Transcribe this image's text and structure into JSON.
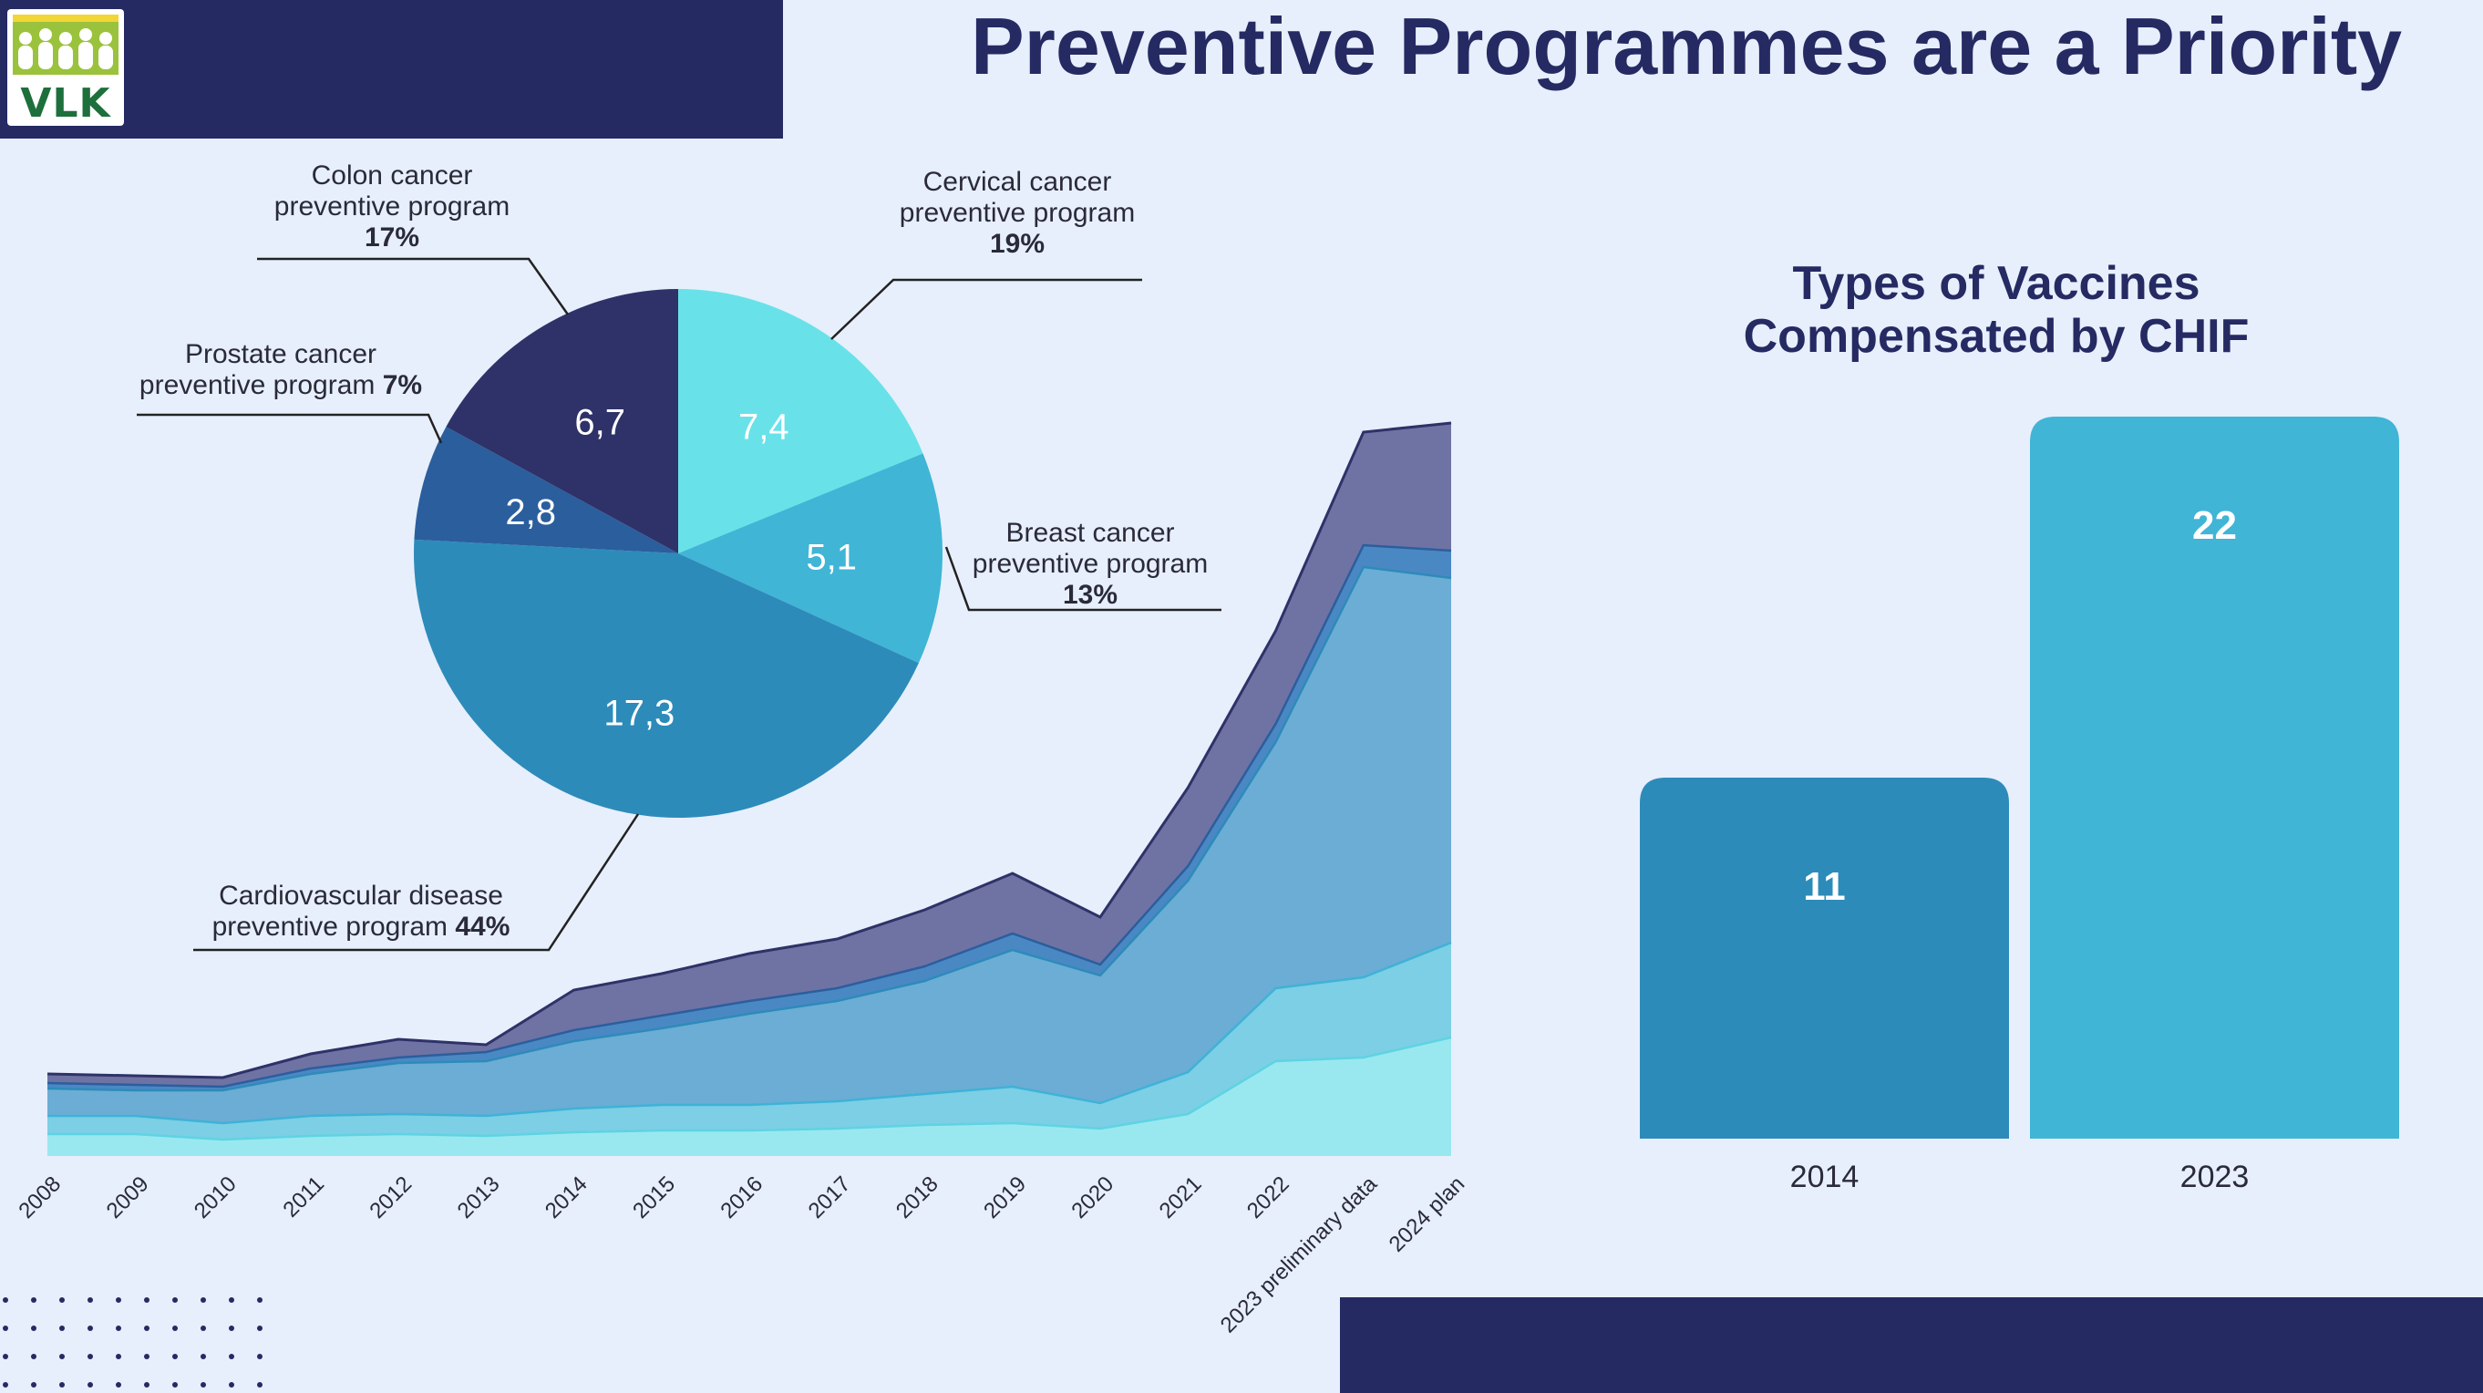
{
  "title": "Preventive Programmes are a Priority",
  "logo": {
    "text": "VLK"
  },
  "colors": {
    "navy": "#252a63",
    "background": "#e7effc",
    "pie_colon": "#2e3268",
    "pie_cervical": "#68e2e8",
    "pie_breast": "#40b5d6",
    "pie_cardio": "#2d8bba",
    "pie_prostate": "#2b5e9d",
    "bar_2014": "#2d8bba",
    "bar_2023": "#40b5d6"
  },
  "chart_data": [
    {
      "type": "area",
      "stacked": true,
      "categories": [
        "2008",
        "2009",
        "2010",
        "2011",
        "2012",
        "2013",
        "2014",
        "2015",
        "2016",
        "2017",
        "2018",
        "2019",
        "2020",
        "2021",
        "2022",
        "2023 preliminary data",
        "2024 plan"
      ],
      "series": [
        {
          "values": [
            24,
            24,
            18,
            22,
            24,
            22,
            26,
            28,
            28,
            30,
            34,
            36,
            30,
            46,
            104,
            108,
            130
          ]
        },
        {
          "values": [
            20,
            20,
            18,
            22,
            22,
            22,
            26,
            28,
            28,
            30,
            34,
            40,
            28,
            46,
            80,
            88,
            104
          ]
        },
        {
          "values": [
            30,
            28,
            36,
            46,
            56,
            60,
            74,
            84,
            100,
            110,
            124,
            150,
            140,
            210,
            270,
            450,
            400
          ]
        },
        {
          "values": [
            6,
            6,
            4,
            6,
            6,
            10,
            12,
            14,
            14,
            14,
            16,
            18,
            12,
            16,
            20,
            24,
            30
          ]
        },
        {
          "values": [
            10,
            10,
            10,
            16,
            20,
            8,
            44,
            46,
            52,
            54,
            62,
            66,
            52,
            86,
            102,
            124,
            140
          ]
        }
      ]
    },
    {
      "type": "pie",
      "slices": [
        {
          "label": "Cervical cancer preventive program",
          "value": 7.4,
          "display": "7,4",
          "percent": "19%"
        },
        {
          "label": "Breast cancer preventive program",
          "value": 5.1,
          "display": "5,1",
          "percent": "13%"
        },
        {
          "label": "Cardiovascular disease preventive program",
          "value": 17.3,
          "display": "17,3",
          "percent": "44%"
        },
        {
          "label": "Prostate cancer preventive program",
          "value": 2.8,
          "display": "2,8",
          "percent": "7%"
        },
        {
          "label": "Colon cancer preventive program",
          "value": 6.7,
          "display": "6,7",
          "percent": "17%"
        }
      ]
    },
    {
      "type": "bar",
      "title": "Types of Vaccines Compensated by CHIF",
      "categories": [
        "2014",
        "2023"
      ],
      "values": [
        11,
        22
      ]
    }
  ],
  "pie_callouts": {
    "colon": {
      "line1": "Colon cancer",
      "line2": "preventive program",
      "pct": "17%"
    },
    "cervical": {
      "line1": "Cervical cancer",
      "line2": "preventive program",
      "pct": "19%"
    },
    "prostate": {
      "line1": "Prostate cancer",
      "line2": "preventive program",
      "pct": "7%"
    },
    "breast": {
      "line1": "Breast cancer",
      "line2": "preventive program",
      "pct": "13%"
    },
    "cardio": {
      "line1": "Cardiovascular disease",
      "line2": "preventive program",
      "pct": "44%"
    }
  },
  "bar_title": {
    "line1": "Types of Vaccines",
    "line2": "Compensated by CHIF"
  }
}
